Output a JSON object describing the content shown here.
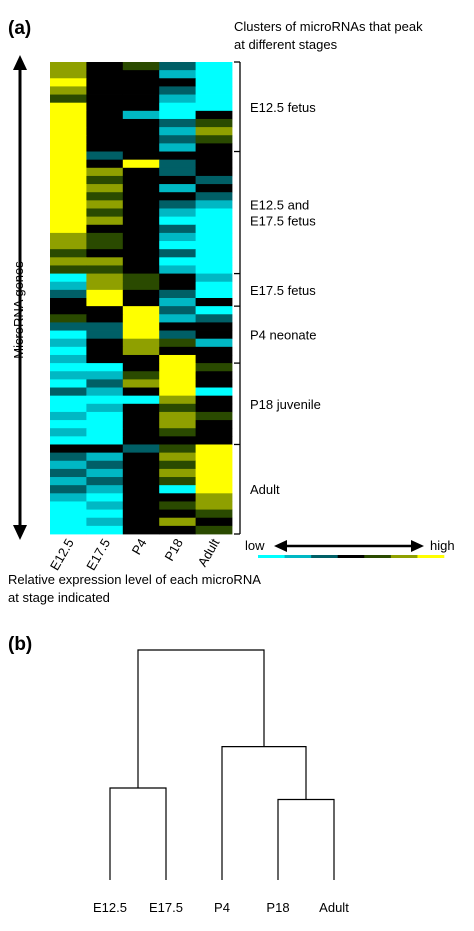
{
  "chart_data": [
    {
      "type": "heatmap",
      "panel_label": "(a)",
      "columns": [
        "E12.5",
        "E17.5",
        "P4",
        "P18",
        "Adult"
      ],
      "ylabel": "MicroRNA genes",
      "top_caption": [
        "Clusters of microRNAs that peak",
        "at different stages"
      ],
      "bottom_caption": [
        "Relative expression level of each microRNA",
        "at stage indicated"
      ],
      "clusters": [
        {
          "label": [
            "E12.5 fetus"
          ],
          "rows": [
            0,
            10
          ]
        },
        {
          "label": [
            "E12.5 and",
            "E17.5 fetus"
          ],
          "rows": [
            11,
            25
          ]
        },
        {
          "label": [
            "E17.5 fetus"
          ],
          "rows": [
            26,
            29
          ]
        },
        {
          "label": [
            "P4 neonate"
          ],
          "rows": [
            30,
            36
          ]
        },
        {
          "label": [
            "P18 juvenile"
          ],
          "rows": [
            37,
            46
          ]
        },
        {
          "label": [
            "Adult"
          ],
          "rows": [
            47,
            57
          ]
        }
      ],
      "color_scale": {
        "low_label": "low",
        "high_label": "high",
        "colors": [
          "#00ffff",
          "#00b8c4",
          "#005f66",
          "#000000",
          "#2a4a00",
          "#8fa000",
          "#ffff00"
        ]
      },
      "value_range": [
        -3,
        3
      ],
      "matrix": [
        [
          2,
          0,
          1,
          -1,
          -3
        ],
        [
          2,
          0,
          0,
          -2,
          -3
        ],
        [
          3,
          0,
          0,
          0,
          -3
        ],
        [
          2,
          0,
          0,
          -1,
          -3
        ],
        [
          1,
          0,
          0,
          -2,
          -3
        ],
        [
          3,
          0,
          0,
          -3,
          -3
        ],
        [
          3,
          0,
          -2,
          -3,
          0
        ],
        [
          3,
          0,
          0,
          -1,
          1
        ],
        [
          3,
          0,
          0,
          -2,
          2
        ],
        [
          3,
          0,
          0,
          -1,
          1
        ],
        [
          3,
          0,
          0,
          -2,
          0
        ],
        [
          3,
          -1,
          0,
          0,
          0
        ],
        [
          3,
          0,
          3,
          -1,
          0
        ],
        [
          3,
          2,
          0,
          -1,
          0
        ],
        [
          3,
          1,
          0,
          0,
          -1
        ],
        [
          3,
          2,
          0,
          -2,
          0
        ],
        [
          3,
          1,
          0,
          0,
          -1
        ],
        [
          3,
          2,
          0,
          -1,
          -2
        ],
        [
          3,
          1,
          0,
          -2,
          -3
        ],
        [
          3,
          2,
          0,
          -3,
          -3
        ],
        [
          3,
          0,
          0,
          -1,
          -3
        ],
        [
          2,
          1,
          0,
          -2,
          -3
        ],
        [
          2,
          1,
          0,
          -3,
          -3
        ],
        [
          1,
          0,
          0,
          -1,
          -3
        ],
        [
          2,
          2,
          0,
          -3,
          -3
        ],
        [
          1,
          1,
          0,
          -2,
          -3
        ],
        [
          -3,
          2,
          1,
          0,
          -2
        ],
        [
          -2,
          2,
          1,
          0,
          -3
        ],
        [
          -1,
          3,
          0,
          -1,
          -3
        ],
        [
          0,
          3,
          0,
          -2,
          0
        ],
        [
          0,
          0,
          3,
          -1,
          -3
        ],
        [
          1,
          0,
          3,
          -2,
          -1
        ],
        [
          -1,
          -1,
          3,
          0,
          0
        ],
        [
          -3,
          -1,
          3,
          -1,
          0
        ],
        [
          -2,
          0,
          2,
          1,
          -2
        ],
        [
          -3,
          0,
          2,
          0,
          0
        ],
        [
          -2,
          0,
          0,
          3,
          0
        ],
        [
          -3,
          -3,
          0,
          3,
          1
        ],
        [
          -2,
          -2,
          1,
          3,
          0
        ],
        [
          -3,
          -1,
          2,
          3,
          0
        ],
        [
          -1,
          -2,
          0,
          3,
          -3
        ],
        [
          -3,
          -3,
          -3,
          2,
          0
        ],
        [
          -3,
          -2,
          0,
          1,
          0
        ],
        [
          -2,
          -3,
          0,
          2,
          1
        ],
        [
          -3,
          -3,
          0,
          2,
          0
        ],
        [
          -2,
          -3,
          0,
          1,
          0
        ],
        [
          -3,
          -3,
          0,
          0,
          0
        ],
        [
          0,
          0,
          -1,
          1,
          3
        ],
        [
          -1,
          -2,
          0,
          2,
          3
        ],
        [
          -2,
          -1,
          0,
          1,
          3
        ],
        [
          -1,
          -2,
          0,
          2,
          3
        ],
        [
          -2,
          -1,
          0,
          1,
          3
        ],
        [
          -1,
          -2,
          0,
          -3,
          3
        ],
        [
          -2,
          -3,
          0,
          0,
          2
        ],
        [
          -3,
          -2,
          0,
          1,
          2
        ],
        [
          -3,
          -3,
          0,
          0,
          1
        ],
        [
          -3,
          -2,
          0,
          2,
          0
        ],
        [
          -3,
          -3,
          0,
          0,
          1
        ]
      ]
    },
    {
      "type": "dendrogram",
      "panel_label": "(b)",
      "leaves": [
        "E12.5",
        "E17.5",
        "P4",
        "P18",
        "Adult"
      ],
      "merges": [
        {
          "left": "E12.5",
          "right": "E17.5",
          "height": 0.4
        },
        {
          "left": "P18",
          "right": "Adult",
          "height": 0.35
        },
        {
          "left": "P4",
          "right": "P18+Adult",
          "height": 0.58
        },
        {
          "left": "E12.5+E17.5",
          "right": "P4+P18+Adult",
          "height": 1.0
        }
      ]
    }
  ]
}
